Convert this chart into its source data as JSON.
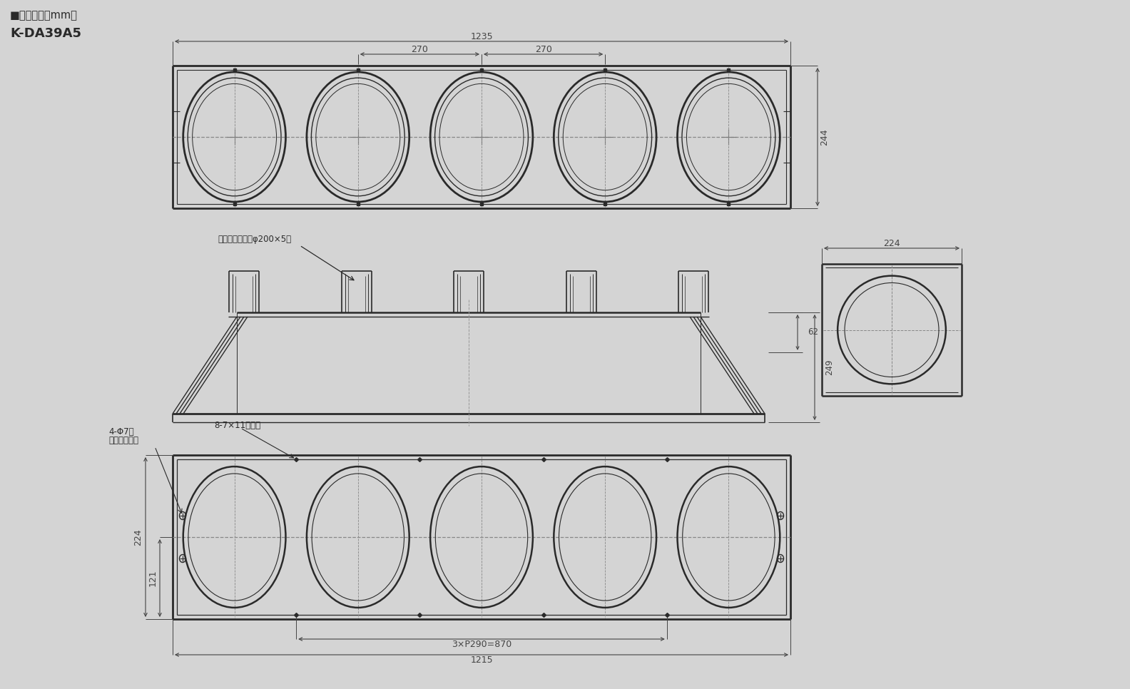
{
  "bg_color": "#d4d4d4",
  "line_color": "#2a2a2a",
  "dim_color": "#444444",
  "title_text": "■外形寸法（mm）",
  "model_text": "K-DA39A5",
  "annotation_text": "接続ダクト口径φ200×5口",
  "hole_label": "8-7×11長丸穴",
  "daruma_label1": "4-Φ7穴",
  "daruma_label2": "（ダルマ穴）",
  "dim_1235": "1235",
  "dim_270a": "270",
  "dim_270b": "270",
  "dim_244": "244",
  "dim_62": "62",
  "dim_249": "249",
  "dim_224_side": "224",
  "dim_224_bot": "224",
  "dim_121": "121",
  "dim_870": "3×P290=870",
  "dim_1215": "1215",
  "num_circles": 5
}
